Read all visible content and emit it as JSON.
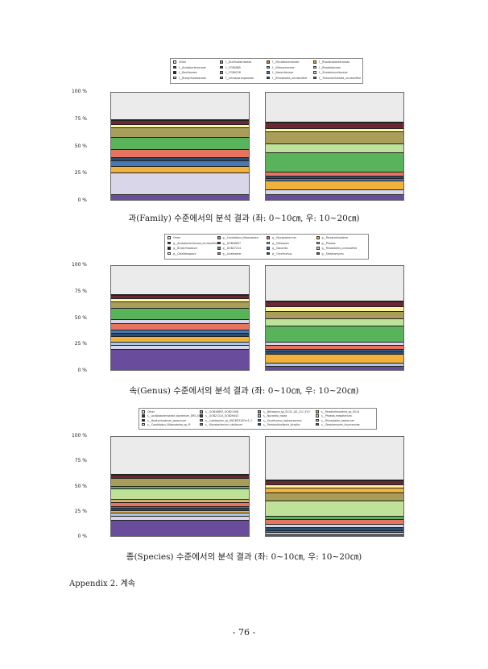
{
  "colors": {
    "lavender": "#d9d6ea",
    "purple": "#6a4c9c",
    "blue": "#4a78b0",
    "lightblue": "#a9c8e8",
    "darkblue": "#2b4c6f",
    "orange": "#f0b23c",
    "salmon": "#e8735e",
    "green": "#58b35a",
    "lightgreen": "#bfe19a",
    "olive": "#a89e5a",
    "yellow": "#fff7a0",
    "maroon": "#6e2633",
    "black": "#222222",
    "gray": "#ebebeb",
    "darkteal": "#3a5570",
    "tan": "#d8b071"
  },
  "charts": [
    {
      "id": "family",
      "caption": "과(Family) 수준에서의 분석 결과 (좌: 0~10㎝, 우: 10~20㎝)",
      "ticks": [
        "100 %",
        "75 %",
        "50 %",
        "25 %",
        "0 %"
      ],
      "legend": [
        {
          "label": "Other",
          "color": "#ebebeb"
        },
        {
          "label": "f__Acidobacteriaceae",
          "color": "#6e2633"
        },
        {
          "label": "f__Bacillaceae",
          "color": "#222222"
        },
        {
          "label": "f__Bradyrhizobiaceae",
          "color": "#fff7a0"
        },
        {
          "label": "f__Burkholderiaceae",
          "color": "#a89e5a"
        },
        {
          "label": "f__FGB0685",
          "color": "#6e2633"
        },
        {
          "label": "f__FGB0228",
          "color": "#58b35a"
        },
        {
          "label": "f__Intrasporangiaceae",
          "color": "#e8735e"
        },
        {
          "label": "f__Mycobacteriaceae",
          "color": "#e8735e"
        },
        {
          "label": "f__Nitrospiraceae",
          "color": "#a9c8e8"
        },
        {
          "label": "f__Nocardiaceae",
          "color": "#4a78b0"
        },
        {
          "label": "f__Rhizobiales_unclassified",
          "color": "#2b4c6f"
        },
        {
          "label": "f__Rhodanobacteraceae",
          "color": "#f0b23c"
        },
        {
          "label": "f__Rhodobiaceae",
          "color": "#d9d6ea"
        },
        {
          "label": "f__Streptomycetaceae",
          "color": "#d9d6ea"
        },
        {
          "label": "f__Thaumarchaeota_unclassified",
          "color": "#6a4c9c"
        }
      ],
      "chart_data": {
        "type": "bar",
        "stacked": true,
        "ylim": [
          0,
          100
        ],
        "bars": [
          {
            "segments": [
              {
                "color": "#6a4c9c",
                "value": 5
              },
              {
                "color": "#d9d6ea",
                "value": 20
              },
              {
                "color": "#f0b23c",
                "value": 6
              },
              {
                "color": "#4a78b0",
                "value": 5
              },
              {
                "color": "#2b4c6f",
                "value": 3
              },
              {
                "color": "#e8735e",
                "value": 8
              },
              {
                "color": "#58b35a",
                "value": 11
              },
              {
                "color": "#a89e5a",
                "value": 9
              },
              {
                "color": "#fff7a0",
                "value": 3
              },
              {
                "color": "#6e2633",
                "value": 3
              },
              {
                "color": "#222222",
                "value": 1
              }
            ]
          },
          {
            "segments": [
              {
                "color": "#6a4c9c",
                "value": 5
              },
              {
                "color": "#d9d6ea",
                "value": 5
              },
              {
                "color": "#f0b23c",
                "value": 8
              },
              {
                "color": "#4a78b0",
                "value": 2
              },
              {
                "color": "#2b4c6f",
                "value": 2
              },
              {
                "color": "#e8735e",
                "value": 4
              },
              {
                "color": "#58b35a",
                "value": 18
              },
              {
                "color": "#bfe19a",
                "value": 8
              },
              {
                "color": "#a89e5a",
                "value": 11
              },
              {
                "color": "#fff7a0",
                "value": 3
              },
              {
                "color": "#6e2633",
                "value": 5
              },
              {
                "color": "#222222",
                "value": 1
              }
            ]
          }
        ]
      }
    },
    {
      "id": "genus",
      "caption": "속(Genus) 수준에서의 분석 결과 (좌: 0~10㎝, 우: 10~20㎝)",
      "ticks": [
        "100 %",
        "75 %",
        "50 %",
        "25 %",
        "0 %"
      ],
      "legend": [
        {
          "label": "Other",
          "color": "#ebebeb"
        },
        {
          "label": "g__Acidobacteriaceae_unclassified",
          "color": "#6e2633"
        },
        {
          "label": "g__Bradyrhizobium",
          "color": "#222222"
        },
        {
          "label": "g__Catellatospora",
          "color": "#fff7a0"
        },
        {
          "label": "g__Candidatus_Nitrosotalea",
          "color": "#a89e5a"
        },
        {
          "label": "g__GOB28857",
          "color": "#6e2633"
        },
        {
          "label": "g__GOB27224",
          "color": "#58b35a"
        },
        {
          "label": "g__Luteibacter",
          "color": "#e8735e"
        },
        {
          "label": "g__Mycobacterium",
          "color": "#e8735e"
        },
        {
          "label": "g__Nitrospira",
          "color": "#d9d6ea"
        },
        {
          "label": "g__Nocardia",
          "color": "#4a78b0"
        },
        {
          "label": "g__Oryzihumus",
          "color": "#2b4c6f"
        },
        {
          "label": "g__Paraburkholderia",
          "color": "#f0b23c"
        },
        {
          "label": "g__Phaeoa",
          "color": "#a9c8e8"
        },
        {
          "label": "g__Rhizobiales_unclassified",
          "color": "#d9d6ea"
        },
        {
          "label": "g__Streptomyces",
          "color": "#6a4c9c"
        }
      ],
      "chart_data": {
        "type": "bar",
        "stacked": true,
        "ylim": [
          0,
          100
        ],
        "bars": [
          {
            "segments": [
              {
                "color": "#6a4c9c",
                "value": 20
              },
              {
                "color": "#d9d6ea",
                "value": 4
              },
              {
                "color": "#a9c8e8",
                "value": 3
              },
              {
                "color": "#f0b23c",
                "value": 5
              },
              {
                "color": "#2b4c6f",
                "value": 3
              },
              {
                "color": "#4a78b0",
                "value": 3
              },
              {
                "color": "#e8735e",
                "value": 6
              },
              {
                "color": "#d9d6ea",
                "value": 4
              },
              {
                "color": "#58b35a",
                "value": 11
              },
              {
                "color": "#a89e5a",
                "value": 6
              },
              {
                "color": "#fff7a0",
                "value": 3
              },
              {
                "color": "#6e2633",
                "value": 3
              },
              {
                "color": "#222222",
                "value": 1
              }
            ]
          },
          {
            "segments": [
              {
                "color": "#6a4c9c",
                "value": 4
              },
              {
                "color": "#a9c8e8",
                "value": 3
              },
              {
                "color": "#f0b23c",
                "value": 8
              },
              {
                "color": "#2b4c6f",
                "value": 3
              },
              {
                "color": "#4a78b0",
                "value": 2
              },
              {
                "color": "#e8735e",
                "value": 4
              },
              {
                "color": "#d9d6ea",
                "value": 3
              },
              {
                "color": "#58b35a",
                "value": 15
              },
              {
                "color": "#bfe19a",
                "value": 7
              },
              {
                "color": "#a89e5a",
                "value": 7
              },
              {
                "color": "#fff7a0",
                "value": 4
              },
              {
                "color": "#6e2633",
                "value": 5
              },
              {
                "color": "#222222",
                "value": 1
              }
            ]
          }
        ]
      }
    },
    {
      "id": "species",
      "caption": "종(Species) 수준에서의 분석 결과 (좌: 0~10㎝, 우: 10~20㎝)",
      "ticks": [
        "100 %",
        "75 %",
        "50 %",
        "25 %",
        "0 %"
      ],
      "legend": [
        {
          "label": "Other",
          "color": "#ebebeb"
        },
        {
          "label": "s__Acidobacteriaceae_bacterium_DRS_EC",
          "color": "#6e2633"
        },
        {
          "label": "s__Bradyrhizobium_japonicum",
          "color": "#222222"
        },
        {
          "label": "s__Candidatus_Nitrosotalea_sp_Pi",
          "color": "#fff7a0"
        },
        {
          "label": "s__GOB18893_GOB21508",
          "color": "#a89e5a"
        },
        {
          "label": "s__GOB27224_GOB29443",
          "color": "#6e2633"
        },
        {
          "label": "s__Luteibacter_sp_UNCMF331Fm3_1",
          "color": "#58b35a"
        },
        {
          "label": "s__Mycobacterium_stellarum",
          "color": "#e8735e"
        },
        {
          "label": "s__Nitrospira_sp_SCGC_AG_211_E15",
          "color": "#e8735e"
        },
        {
          "label": "s__Nocardia_rosea",
          "color": "#a9c8e8"
        },
        {
          "label": "s__Oryzihumus_leptocrescens",
          "color": "#4a78b0"
        },
        {
          "label": "s__Paraburkholderia_kirspita",
          "color": "#2b4c6f"
        },
        {
          "label": "s__Paraburkholderia_sp_EG14",
          "color": "#f0b23c"
        },
        {
          "label": "s__Phaeoa_megaterium",
          "color": "#d9d6ea"
        },
        {
          "label": "s__Rhizobiales_bacterium",
          "color": "#d9d6ea"
        },
        {
          "label": "s__Streptomyces_lusyrrazziae",
          "color": "#6a4c9c"
        }
      ],
      "chart_data": {
        "type": "bar",
        "stacked": true,
        "ylim": [
          0,
          100
        ],
        "bars": [
          {
            "segments": [
              {
                "color": "#6a4c9c",
                "value": 16
              },
              {
                "color": "#d9d6ea",
                "value": 4
              },
              {
                "color": "#a9c8e8",
                "value": 3
              },
              {
                "color": "#f0b23c",
                "value": 3
              },
              {
                "color": "#2b4c6f",
                "value": 2
              },
              {
                "color": "#4a78b0",
                "value": 2
              },
              {
                "color": "#e8735e",
                "value": 4
              },
              {
                "color": "#d8b071",
                "value": 3
              },
              {
                "color": "#bfe19a",
                "value": 10
              },
              {
                "color": "#58b35a",
                "value": 3
              },
              {
                "color": "#a89e5a",
                "value": 8
              },
              {
                "color": "#6e2633",
                "value": 3
              },
              {
                "color": "#222222",
                "value": 1
              }
            ]
          },
          {
            "segments": [
              {
                "color": "#6a4c9c",
                "value": 2
              },
              {
                "color": "#a9c8e8",
                "value": 2
              },
              {
                "color": "#4a78b0",
                "value": 2
              },
              {
                "color": "#2b4c6f",
                "value": 3
              },
              {
                "color": "#d9d6ea",
                "value": 3
              },
              {
                "color": "#e8735e",
                "value": 5
              },
              {
                "color": "#58b35a",
                "value": 3
              },
              {
                "color": "#bfe19a",
                "value": 15
              },
              {
                "color": "#a89e5a",
                "value": 8
              },
              {
                "color": "#f0b23c",
                "value": 5
              },
              {
                "color": "#fff7a0",
                "value": 3
              },
              {
                "color": "#6e2633",
                "value": 4
              },
              {
                "color": "#222222",
                "value": 1
              }
            ]
          }
        ]
      }
    }
  ],
  "appendix_label": "Appendix 2. 계속",
  "page_number": "- 76 -"
}
